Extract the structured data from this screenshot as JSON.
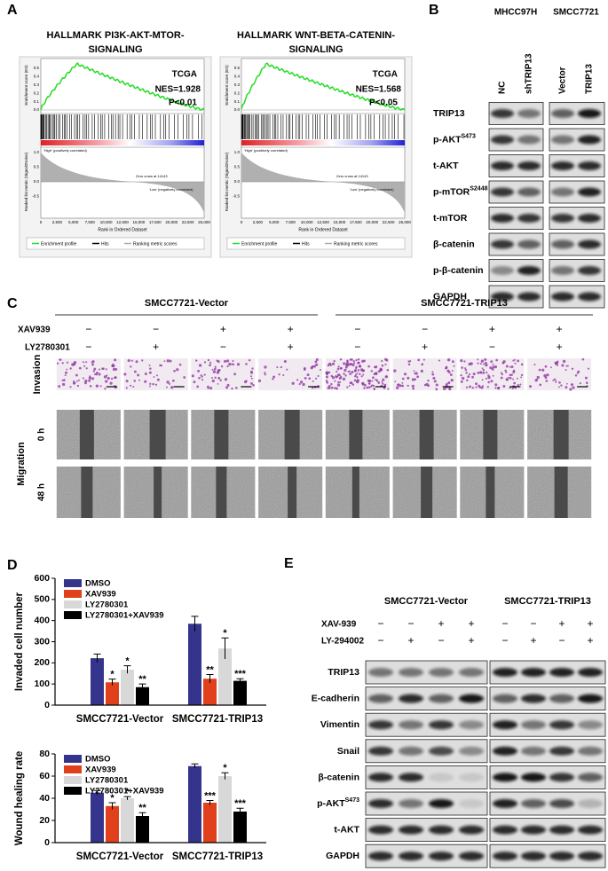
{
  "panel_a": {
    "label": "A",
    "plots": [
      {
        "title_lines": [
          "HALLMARK PI3K-AKT-MTOR-",
          "SIGNALING"
        ],
        "cohort": "TCGA",
        "nes": "NES=1.928",
        "p": "P<0.01"
      },
      {
        "title_lines": [
          "HALLMARK WNT-BETA-CATENIN-",
          "SIGNALING"
        ],
        "cohort": "TCGA",
        "nes": "NES=1.568",
        "p": "P<0.05"
      }
    ],
    "es_axis": "Enrichment score (ES)",
    "metric_axis": "Ranked list metric (Signal2Noise)",
    "x_axis": "Rank in Ordered Dataset",
    "high": "'High' (positively correlated)",
    "low": "'Low' (negatively correlated)",
    "zero_cross": "Zero cross at 14143",
    "legend": [
      "Enrichment profile",
      "Hits",
      "Ranking metric scores"
    ],
    "es_ticks": [
      "0.5",
      "0.4",
      "0.3",
      "0.2",
      "0.1",
      "0.0"
    ],
    "metric_ticks": [
      "1.0",
      "0.5",
      "0.0",
      "-0.5"
    ],
    "rank_ticks": [
      "0",
      "2,500",
      "5,000",
      "7,500",
      "10,000",
      "12,500",
      "15,000",
      "17,500",
      "20,000",
      "22,500",
      "25,000"
    ]
  },
  "panel_b": {
    "label": "B",
    "groups": [
      {
        "name": "MHCC97H",
        "lanes": [
          "NC",
          "shTRIP13"
        ]
      },
      {
        "name": "SMCC7721",
        "lanes": [
          "Vector",
          "TRIP13"
        ]
      }
    ],
    "rows": [
      {
        "name": "TRIP13"
      },
      {
        "name": "p-AKT",
        "sup": "S473"
      },
      {
        "name": "t-AKT"
      },
      {
        "name": "p-mTOR",
        "sup": "S2448"
      },
      {
        "name": "t-mTOR"
      },
      {
        "name": "β-catenin"
      },
      {
        "name": "p-β-catenin"
      },
      {
        "name": "GAPDH"
      }
    ]
  },
  "panel_c": {
    "label": "C",
    "groups": [
      "SMCC7721-Vector",
      "SMCC7721-TRIP13"
    ],
    "treatments": [
      {
        "name": "XAV939",
        "signs": [
          "−",
          "−",
          "+",
          "+",
          "−",
          "−",
          "+",
          "+"
        ]
      },
      {
        "name": "LY2780301",
        "signs": [
          "−",
          "+",
          "−",
          "+",
          "−",
          "+",
          "−",
          "+"
        ]
      }
    ],
    "invasion": "Invasion",
    "migration": "Migration",
    "times": [
      "0 h",
      "48 h"
    ]
  },
  "panel_d": {
    "label": "D"
  },
  "chart_data": [
    {
      "type": "bar",
      "ylabel": "Invaded cell number",
      "categories": [
        "SMCC7721-Vector",
        "SMCC7721-TRIP13"
      ],
      "series": [
        {
          "name": "DMSO",
          "color": "#34348c",
          "values": [
            222,
            385
          ],
          "errors": [
            20,
            35
          ]
        },
        {
          "name": "XAV939",
          "color": "#e0401c",
          "values": [
            108,
            125
          ],
          "errors": [
            15,
            20
          ],
          "significance": [
            "*",
            "**"
          ]
        },
        {
          "name": "LY2780301",
          "color": "#d8d8d8",
          "values": [
            168,
            268
          ],
          "errors": [
            18,
            50
          ],
          "significance": [
            "*",
            "*"
          ]
        },
        {
          "name": "LY2780301+XAV939",
          "color": "#000000",
          "values": [
            85,
            115
          ],
          "errors": [
            15,
            10
          ],
          "significance": [
            "**",
            "***"
          ]
        }
      ],
      "ylim": [
        0,
        600
      ],
      "yticks": [
        0,
        100,
        200,
        300,
        400,
        500,
        600
      ],
      "legend": "upper left"
    },
    {
      "type": "bar",
      "ylabel": "Wound healing rate",
      "categories": [
        "SMCC7721-Vector",
        "SMCC7721-TRIP13"
      ],
      "series": [
        {
          "name": "DMSO",
          "color": "#34348c",
          "values": [
            45,
            69
          ],
          "errors": [
            2,
            2
          ]
        },
        {
          "name": "XAV939",
          "color": "#e0401c",
          "values": [
            33,
            36
          ],
          "errors": [
            3,
            2
          ],
          "significance": [
            "*",
            "***"
          ]
        },
        {
          "name": "LY2780301",
          "color": "#d8d8d8",
          "values": [
            40,
            60
          ],
          "errors": [
            1.5,
            3
          ],
          "significance": [
            "*",
            "*"
          ]
        },
        {
          "name": "LY2780301+XAV939",
          "color": "#000000",
          "values": [
            24,
            28
          ],
          "errors": [
            3,
            3
          ],
          "significance": [
            "**",
            "***"
          ]
        }
      ],
      "ylim": [
        0,
        80
      ],
      "yticks": [
        0,
        20,
        40,
        60,
        80
      ],
      "legend": "upper left"
    }
  ],
  "panel_e": {
    "label": "E",
    "groups": [
      "SMCC7721-Vector",
      "SMCC7721-TRIP13"
    ],
    "treatments": [
      {
        "name": "XAV-939",
        "signs": [
          "−",
          "−",
          "+",
          "+",
          "−",
          "−",
          "+",
          "+"
        ]
      },
      {
        "name": "LY-294002",
        "signs": [
          "−",
          "+",
          "−",
          "+",
          "−",
          "+",
          "−",
          "+"
        ]
      }
    ],
    "rows": [
      {
        "name": "TRIP13"
      },
      {
        "name": "E-cadherin"
      },
      {
        "name": "Vimentin"
      },
      {
        "name": "Snail"
      },
      {
        "name": "β-catenin"
      },
      {
        "name": "p-AKT",
        "sup": "S473"
      },
      {
        "name": "t-AKT"
      },
      {
        "name": "GAPDH"
      }
    ]
  }
}
